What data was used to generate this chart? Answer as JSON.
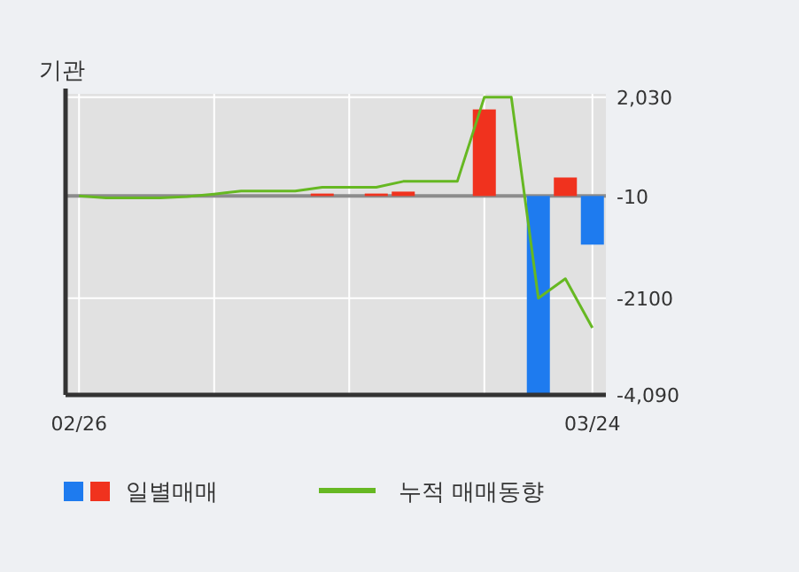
{
  "chart_data": {
    "type": "bar",
    "title": "기관",
    "categories": [
      "02/26",
      null,
      null,
      null,
      null,
      null,
      null,
      null,
      null,
      null,
      null,
      null,
      null,
      null,
      null,
      null,
      null,
      null,
      null,
      "03/24"
    ],
    "series": [
      {
        "name": "일별매매",
        "colors": [
          "#f0321e",
          "#f0321e",
          "#f0321e",
          "#f0321e",
          "#f0321e",
          "#f0321e",
          "#f0321e",
          "#f0321e",
          "#f0321e",
          "#f0321e",
          "#f0321e",
          "#f0321e",
          "#f0321e",
          "#f0321e",
          "#f0321e",
          "#f0321e",
          "#f0321e",
          "#1e7bef",
          "#f0321e",
          "#1e7bef"
        ],
        "values": [
          null,
          null,
          null,
          null,
          null,
          null,
          null,
          null,
          null,
          50,
          null,
          50,
          90,
          null,
          null,
          1780,
          null,
          -4080,
          380,
          -1000
        ]
      },
      {
        "name": "누적 매매동향",
        "type": "line",
        "color": "#66b822",
        "values": [
          0,
          -40,
          -40,
          -40,
          -10,
          40,
          100,
          100,
          100,
          180,
          180,
          180,
          300,
          300,
          300,
          2030,
          2030,
          -2100,
          -1700,
          -2710
        ]
      }
    ],
    "ylim": [
      -4090,
      2100
    ],
    "yticks": [
      {
        "value": 2030,
        "label": "2,030"
      },
      -10,
      -2100,
      {
        "value": -4090,
        "label": "-4,090"
      }
    ],
    "ref_lines": [
      {
        "axis": "y",
        "value": 0,
        "color": "#8c8c8c"
      }
    ],
    "grid": true,
    "legend": "bottom"
  }
}
